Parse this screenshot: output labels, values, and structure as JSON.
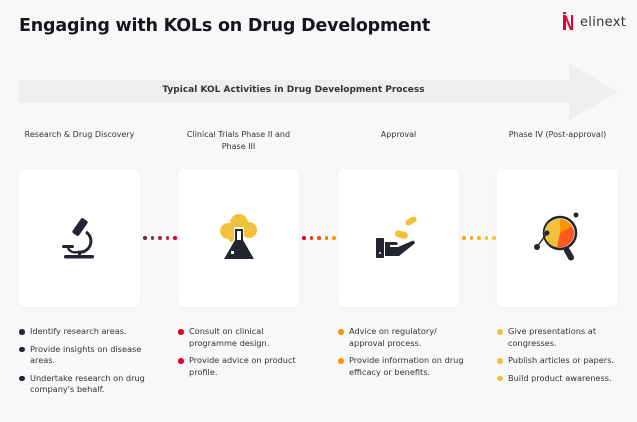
{
  "title": "Engaging with KOLs on Drug Development",
  "logo": {
    "text": "elinext",
    "color": "#e4002b"
  },
  "process_label": "Typical KOL Activities in Drug Development Process",
  "colors": {
    "dark": "#23262e",
    "red": "#e4002b",
    "orange": "#ff9500",
    "yellow": "#f2c13c"
  },
  "phases": [
    {
      "label": "Research & Drug Discovery",
      "icon": "microscope-icon",
      "bullet_color": "#23262e",
      "items": [
        "Identify research areas.",
        "Provide insights on disease areas.",
        "Undertake research on drug company's behalf."
      ]
    },
    {
      "label": "Clinical Trials Phase II and Phase III",
      "icon": "flask-icon",
      "bullet_color": "#e4002b",
      "items": [
        "Consult on clinical programme design.",
        "Provide advice on product profile."
      ]
    },
    {
      "label": "Approval",
      "icon": "hand-pills-icon",
      "bullet_color": "#ff9500",
      "items": [
        "Advice on regulatory/ approval process.",
        "Provide information on drug efficacy or benefits."
      ]
    },
    {
      "label": "Phase IV (Post-approval)",
      "icon": "magnifier-chart-icon",
      "bullet_color": "#f2c13c",
      "items": [
        "Give presentations at congresses.",
        "Publish articles or papers.",
        "Build product awareness."
      ]
    }
  ]
}
